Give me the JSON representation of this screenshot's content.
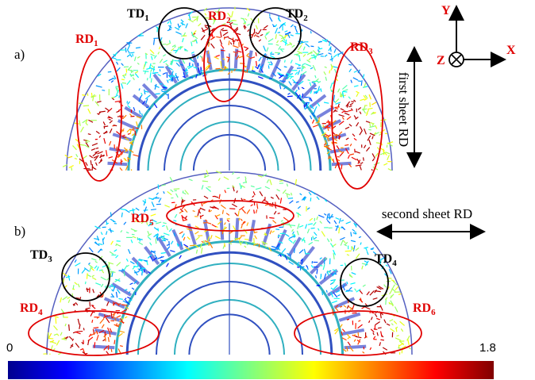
{
  "panels": [
    {
      "label": "a)"
    },
    {
      "label": "b)"
    }
  ],
  "regions": [
    {
      "name": "TD",
      "sub": "1"
    },
    {
      "name": "RD",
      "sub": "2"
    },
    {
      "name": "TD",
      "sub": "2"
    },
    {
      "name": "RD",
      "sub": "1"
    },
    {
      "name": "RD",
      "sub": "3"
    },
    {
      "name": "RD",
      "sub": "5"
    },
    {
      "name": "TD",
      "sub": "3"
    },
    {
      "name": "TD",
      "sub": "4"
    },
    {
      "name": "RD",
      "sub": "4"
    },
    {
      "name": "RD",
      "sub": "6"
    }
  ],
  "axes": {
    "y": "Y",
    "x": "X",
    "z": "Z"
  },
  "arrows": {
    "first": "first sheet RD",
    "second": "second sheet RD"
  },
  "colorbar": {
    "min": 0,
    "max": 1.8
  }
}
